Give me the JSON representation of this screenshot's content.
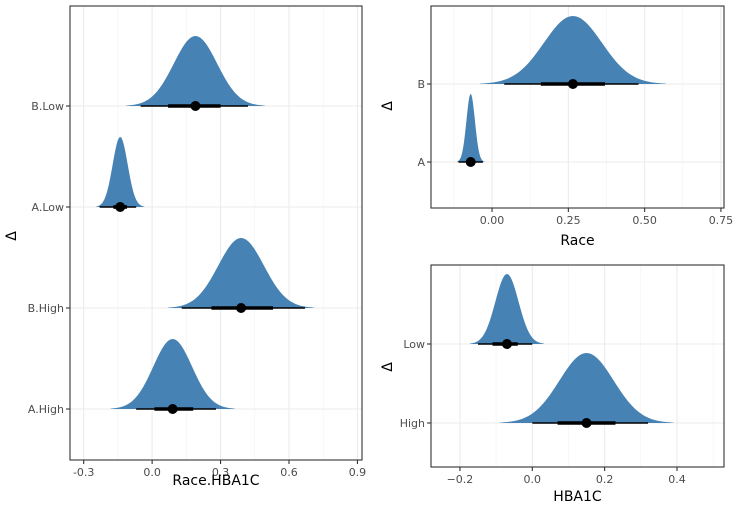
{
  "chart_data": [
    {
      "type": "halfeye",
      "xlabel": "Race.HBA1C",
      "ylabel": "Δ",
      "xlim": [
        -0.36,
        0.92
      ],
      "xticks": [
        -0.3,
        0.0,
        0.3,
        0.6,
        0.9
      ],
      "xtick_labels": [
        "-0.3",
        "0.0",
        "0.3",
        "0.6",
        "0.9"
      ],
      "grid": true,
      "fill_color": "#4682B4",
      "categories": [
        "B.Low",
        "A.Low",
        "B.High",
        "A.High"
      ],
      "series": [
        {
          "category": "B.Low",
          "mean": 0.19,
          "sd": 0.095,
          "median": 0.19,
          "interval_66": [
            0.07,
            0.3
          ],
          "interval_95": [
            -0.05,
            0.42
          ]
        },
        {
          "category": "A.Low",
          "mean": -0.14,
          "sd": 0.033,
          "median": -0.14,
          "interval_66": [
            -0.17,
            -0.11
          ],
          "interval_95": [
            -0.23,
            -0.07
          ]
        },
        {
          "category": "B.High",
          "mean": 0.39,
          "sd": 0.1,
          "median": 0.39,
          "interval_66": [
            0.26,
            0.53
          ],
          "interval_95": [
            0.13,
            0.67
          ]
        },
        {
          "category": "A.High",
          "mean": 0.09,
          "sd": 0.085,
          "median": 0.09,
          "interval_66": [
            0.01,
            0.18
          ],
          "interval_95": [
            -0.07,
            0.28
          ]
        }
      ]
    },
    {
      "type": "halfeye",
      "xlabel": "Race",
      "ylabel": "Δ",
      "xlim": [
        -0.2,
        0.76
      ],
      "xticks": [
        0.0,
        0.25,
        0.5,
        0.75
      ],
      "xtick_labels": [
        "0.00",
        "0.25",
        "0.50",
        "0.75"
      ],
      "grid": true,
      "fill_color": "#4682B4",
      "categories": [
        "B",
        "A"
      ],
      "series": [
        {
          "category": "B",
          "mean": 0.265,
          "sd": 0.095,
          "median": 0.265,
          "interval_66": [
            0.16,
            0.37
          ],
          "interval_95": [
            0.04,
            0.48
          ]
        },
        {
          "category": "A",
          "mean": -0.07,
          "sd": 0.014,
          "median": -0.07,
          "interval_66": [
            -0.085,
            -0.055
          ],
          "interval_95": [
            -0.11,
            -0.03
          ]
        }
      ]
    },
    {
      "type": "halfeye",
      "xlabel": "HBA1C",
      "ylabel": "Δ",
      "xlim": [
        -0.28,
        0.53
      ],
      "xticks": [
        -0.2,
        0.0,
        0.2,
        0.4
      ],
      "xtick_labels": [
        "−0.2",
        "0.0",
        "0.2",
        "0.4"
      ],
      "grid": true,
      "fill_color": "#4682B4",
      "categories": [
        "Low",
        "High"
      ],
      "series": [
        {
          "category": "Low",
          "mean": -0.07,
          "sd": 0.032,
          "median": -0.07,
          "interval_66": [
            -0.11,
            -0.04
          ],
          "interval_95": [
            -0.15,
            0.0
          ]
        },
        {
          "category": "High",
          "mean": 0.15,
          "sd": 0.075,
          "median": 0.15,
          "interval_66": [
            0.07,
            0.23
          ],
          "interval_95": [
            0.0,
            0.32
          ]
        }
      ]
    }
  ]
}
